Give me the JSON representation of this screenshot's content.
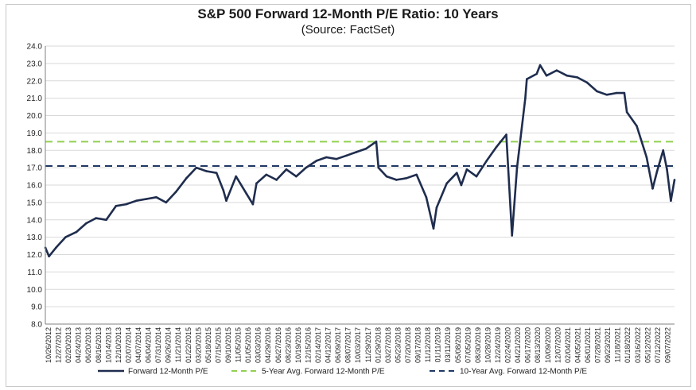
{
  "chart_data": {
    "type": "line",
    "title": "S&P 500 Forward 12-Month P/E Ratio: 10 Years",
    "subtitle": "(Source: FactSet)",
    "ylim": [
      8.0,
      24.0
    ],
    "yticks": [
      "24.0",
      "23.0",
      "22.0",
      "21.0",
      "20.0",
      "19.0",
      "18.0",
      "17.0",
      "16.0",
      "15.0",
      "14.0",
      "13.0",
      "12.0",
      "11.0",
      "10.0",
      "9.0",
      "8.0"
    ],
    "x_range": [
      "2012-10-26",
      "2022-10-21"
    ],
    "xticks": [
      "10/26/2012",
      "12/27/2012",
      "02/20/2013",
      "04/24/2013",
      "06/20/2013",
      "08/16/2013",
      "10/14/2013",
      "12/10/2013",
      "02/07/2014",
      "04/07/2014",
      "06/04/2014",
      "07/31/2014",
      "09/26/2014",
      "11/21/2014",
      "01/22/2015",
      "03/20/2015",
      "05/18/2015",
      "07/15/2015",
      "09/10/2015",
      "11/05/2015",
      "01/05/2016",
      "03/03/2016",
      "04/29/2016",
      "06/27/2016",
      "08/23/2016",
      "10/19/2016",
      "12/15/2016",
      "02/14/2017",
      "04/12/2017",
      "06/09/2017",
      "08/07/2017",
      "10/03/2017",
      "11/29/2017",
      "01/29/2018",
      "03/27/2018",
      "05/23/2018",
      "07/20/2018",
      "09/17/2018",
      "11/12/2018",
      "01/11/2019",
      "03/11/2019",
      "05/08/2019",
      "07/05/2019",
      "08/30/2019",
      "10/28/2019",
      "12/24/2019",
      "02/24/2020",
      "04/21/2020",
      "06/17/2020",
      "08/13/2020",
      "10/09/2020",
      "12/07/2020",
      "02/04/2021",
      "04/05/2021",
      "06/01/2021",
      "07/28/2021",
      "09/23/2021",
      "11/18/2021",
      "01/18/2022",
      "03/16/2022",
      "05/12/2022",
      "07/12/2022",
      "09/07/2022"
    ],
    "series": [
      {
        "name": "Forward 12-Month P/E",
        "color": "#1f2d4e",
        "style": "solid",
        "x": [
          "2012-10-26",
          "2012-11-16",
          "2012-12-27",
          "2013-02-20",
          "2013-04-24",
          "2013-06-20",
          "2013-08-16",
          "2013-10-14",
          "2013-12-10",
          "2014-02-07",
          "2014-04-07",
          "2014-06-04",
          "2014-07-31",
          "2014-09-26",
          "2014-11-21",
          "2015-01-22",
          "2015-03-20",
          "2015-05-18",
          "2015-07-15",
          "2015-08-24",
          "2015-09-10",
          "2015-11-05",
          "2016-01-05",
          "2016-02-11",
          "2016-03-03",
          "2016-04-29",
          "2016-06-27",
          "2016-08-23",
          "2016-10-19",
          "2016-12-15",
          "2017-02-14",
          "2017-04-12",
          "2017-06-09",
          "2017-08-07",
          "2017-10-03",
          "2017-11-29",
          "2018-01-26",
          "2018-02-08",
          "2018-03-27",
          "2018-05-23",
          "2018-07-20",
          "2018-09-17",
          "2018-11-12",
          "2018-12-24",
          "2019-01-11",
          "2019-03-11",
          "2019-05-08",
          "2019-06-03",
          "2019-07-05",
          "2019-08-30",
          "2019-10-28",
          "2019-12-24",
          "2020-02-19",
          "2020-03-23",
          "2020-04-21",
          "2020-06-08",
          "2020-06-17",
          "2020-08-13",
          "2020-09-02",
          "2020-10-09",
          "2020-12-07",
          "2021-02-04",
          "2021-04-05",
          "2021-06-01",
          "2021-07-28",
          "2021-09-23",
          "2021-11-18",
          "2022-01-03",
          "2022-01-18",
          "2022-03-16",
          "2022-05-12",
          "2022-06-16",
          "2022-07-12",
          "2022-08-16",
          "2022-09-07",
          "2022-09-30",
          "2022-10-21"
        ],
        "y": [
          12.4,
          11.9,
          12.4,
          13.0,
          13.3,
          13.8,
          14.1,
          14.0,
          14.8,
          14.9,
          15.1,
          15.2,
          15.3,
          15.0,
          15.6,
          16.4,
          17.0,
          16.8,
          16.7,
          15.7,
          15.1,
          16.5,
          15.5,
          14.9,
          16.1,
          16.6,
          16.3,
          16.9,
          16.5,
          17.0,
          17.4,
          17.6,
          17.5,
          17.7,
          17.9,
          18.1,
          18.5,
          17.0,
          16.5,
          16.3,
          16.4,
          16.6,
          15.3,
          13.5,
          14.7,
          16.1,
          16.7,
          16.0,
          16.9,
          16.5,
          17.4,
          18.2,
          18.9,
          13.1,
          17.0,
          21.0,
          22.1,
          22.4,
          22.9,
          22.3,
          22.6,
          22.3,
          22.2,
          21.9,
          21.4,
          21.2,
          21.3,
          21.3,
          20.2,
          19.4,
          17.6,
          15.8,
          16.8,
          18.0,
          16.9,
          15.1,
          16.3
        ]
      },
      {
        "name": "5-Year Avg. Forward 12-Month P/E",
        "color": "#92d050",
        "style": "dashed",
        "value": 18.5
      },
      {
        "name": "10-Year Avg. Forward 12-Month P/E",
        "color": "#1f3864",
        "style": "dashed",
        "value": 17.1
      }
    ],
    "grid": true,
    "legend": "bottom"
  }
}
